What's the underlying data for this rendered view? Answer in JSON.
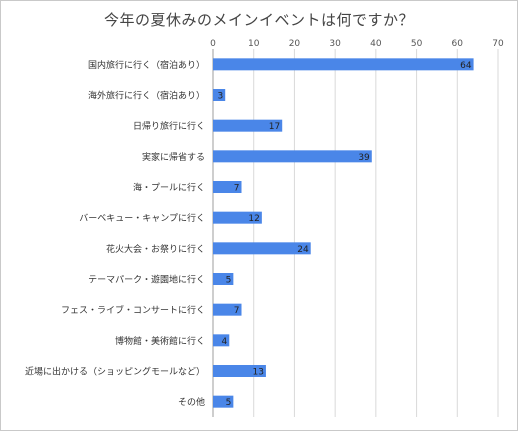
{
  "chart_data": {
    "type": "bar",
    "orientation": "horizontal",
    "title": "今年の夏休みのメインイベントは何ですか？",
    "xlabel": "",
    "ylabel": "",
    "xlim": [
      0,
      70
    ],
    "xticks": [
      0,
      10,
      20,
      30,
      40,
      50,
      60,
      70
    ],
    "xaxis_position": "top",
    "grid": true,
    "legend": "none",
    "bar_color": "#4a86e8",
    "categories": [
      "国内旅行に行く（宿泊あり）",
      "海外旅行に行く（宿泊あり）",
      "日帰り旅行に行く",
      "実家に帰省する",
      "海・プールに行く",
      "バーベキュー・キャンプに行く",
      "花火大会・お祭りに行く",
      "テーマパーク・遊園地に行く",
      "フェス・ライブ・コンサートに行く",
      "博物館・美術館に行く",
      "近場に出かける（ショッピングモールなど）",
      "その他"
    ],
    "values": [
      64,
      3,
      17,
      39,
      7,
      12,
      24,
      5,
      7,
      4,
      13,
      5
    ],
    "data_labels": [
      "64",
      "3",
      "17",
      "39",
      "7",
      "12",
      "24",
      "5",
      "7",
      "4",
      "13",
      "5"
    ]
  }
}
